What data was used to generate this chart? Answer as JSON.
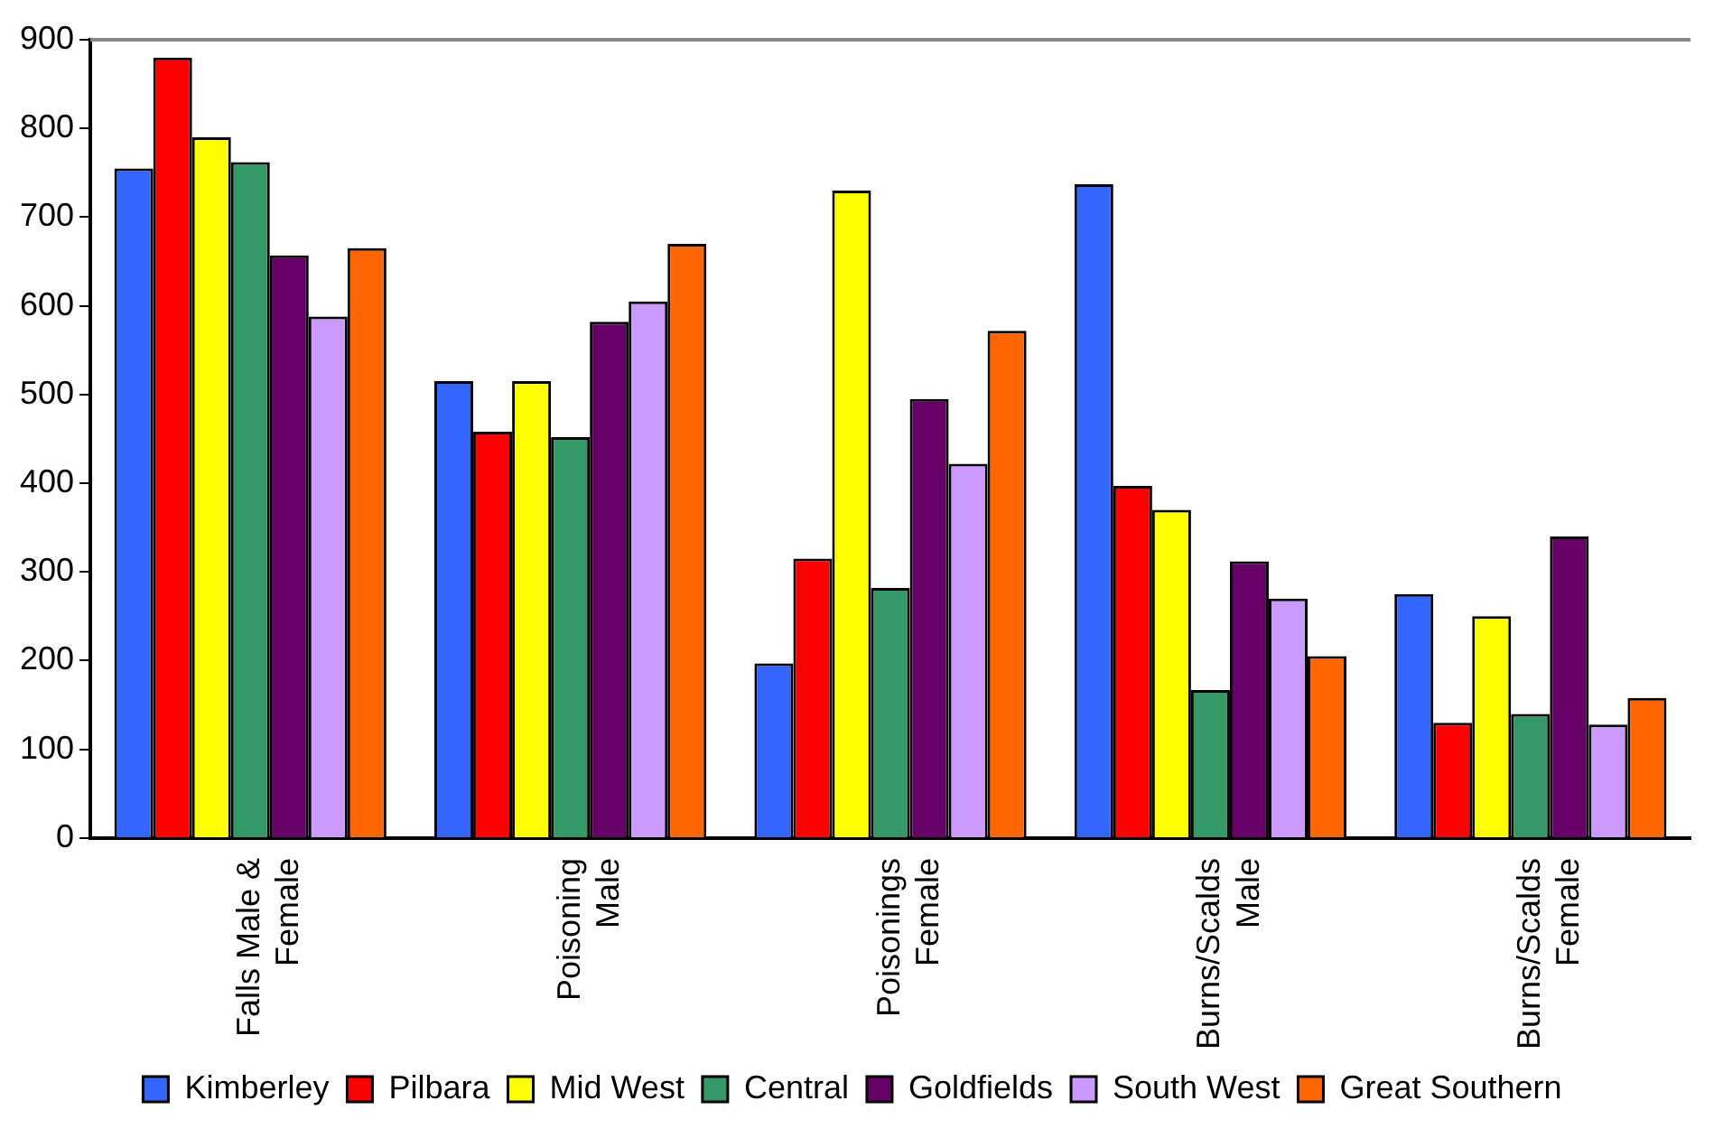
{
  "chart_data": {
    "type": "bar",
    "categories": [
      "Falls Male & Female",
      "Poisoning Male",
      "Poisonings Female",
      "Burns/Scalds Male",
      "Burns/Scalds Female"
    ],
    "series": [
      {
        "name": "Kimberley",
        "color": "#3366ff",
        "values": [
          755,
          515,
          197,
          737,
          275
        ]
      },
      {
        "name": "Pilbara",
        "color": "#ff0000",
        "values": [
          880,
          458,
          315,
          397,
          130
        ]
      },
      {
        "name": "Mid West",
        "color": "#ffff00",
        "values": [
          790,
          515,
          730,
          370,
          250
        ]
      },
      {
        "name": "Central",
        "color": "#339966",
        "values": [
          762,
          452,
          282,
          167,
          140
        ]
      },
      {
        "name": "Goldfields",
        "color": "#660066",
        "values": [
          657,
          582,
          495,
          312,
          340
        ]
      },
      {
        "name": "South West",
        "color": "#cc99ff",
        "values": [
          588,
          605,
          422,
          270,
          128
        ]
      },
      {
        "name": "Great Southern",
        "color": "#ff6600",
        "values": [
          665,
          670,
          572,
          205,
          158
        ]
      }
    ],
    "ylim": [
      0,
      900
    ],
    "yticks": [
      0,
      100,
      200,
      300,
      400,
      500,
      600,
      700,
      800,
      900
    ],
    "grid": false,
    "legend": "bottom"
  }
}
